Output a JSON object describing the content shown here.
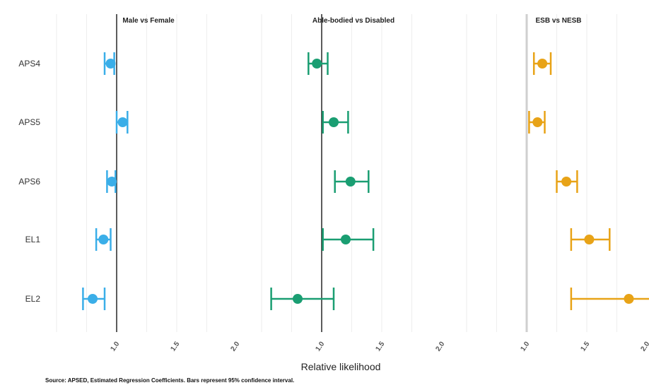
{
  "chart_data": {
    "type": "scatter",
    "subtype": "forest-plot",
    "rows": [
      "APS4",
      "APS5",
      "APS6",
      "EL1",
      "EL2"
    ],
    "xlabel": "Relative likelihood",
    "source": "Source: APSED, Estimated Regression Coefficients. Bars represent 95% confidence interval.",
    "reference_line": 1.0,
    "grid": true,
    "panels": [
      {
        "title": "Male vs Female",
        "color": "#3AAEE8",
        "xlim": [
          0.0,
          1.75
        ],
        "ticks": [
          1.0,
          1.5,
          2.0
        ],
        "tick_labels": [
          "1.0",
          "1.5",
          "2.0"
        ],
        "points": [
          {
            "row": "APS4",
            "estimate": 0.95,
            "lower": 0.9,
            "upper": 0.98
          },
          {
            "row": "APS5",
            "estimate": 1.05,
            "lower": 1.0,
            "upper": 1.09
          },
          {
            "row": "APS6",
            "estimate": 0.96,
            "lower": 0.92,
            "upper": 0.99
          },
          {
            "row": "EL1",
            "estimate": 0.89,
            "lower": 0.83,
            "upper": 0.95
          },
          {
            "row": "EL2",
            "estimate": 0.8,
            "lower": 0.72,
            "upper": 0.9
          }
        ]
      },
      {
        "title": "Able-bodied vs Disabled",
        "color": "#1A9E72",
        "xlim": [
          0.0,
          1.75
        ],
        "ticks": [
          1.0,
          1.5,
          2.0
        ],
        "tick_labels": [
          "1.0",
          "1.5",
          "2.0"
        ],
        "points": [
          {
            "row": "APS4",
            "estimate": 0.96,
            "lower": 0.89,
            "upper": 1.05
          },
          {
            "row": "APS5",
            "estimate": 1.1,
            "lower": 1.01,
            "upper": 1.22
          },
          {
            "row": "APS6",
            "estimate": 1.24,
            "lower": 1.11,
            "upper": 1.39
          },
          {
            "row": "EL1",
            "estimate": 1.2,
            "lower": 1.01,
            "upper": 1.43
          },
          {
            "row": "EL2",
            "estimate": 0.8,
            "lower": 0.58,
            "upper": 1.1
          }
        ]
      },
      {
        "title": "ESB vs NESB",
        "color": "#E8A317",
        "xlim": [
          0.0,
          1.75
        ],
        "ticks": [
          1.0,
          1.5,
          2.0
        ],
        "tick_labels": [
          "1.0",
          "1.5",
          "2.0"
        ],
        "points": [
          {
            "row": "APS4",
            "estimate": 1.13,
            "lower": 1.06,
            "upper": 1.2
          },
          {
            "row": "APS5",
            "estimate": 1.09,
            "lower": 1.02,
            "upper": 1.15
          },
          {
            "row": "APS6",
            "estimate": 1.33,
            "lower": 1.25,
            "upper": 1.42
          },
          {
            "row": "EL1",
            "estimate": 1.52,
            "lower": 1.37,
            "upper": 1.69
          },
          {
            "row": "EL2",
            "estimate": 1.85,
            "lower": 1.37,
            "upper": 2.1
          }
        ]
      }
    ]
  }
}
